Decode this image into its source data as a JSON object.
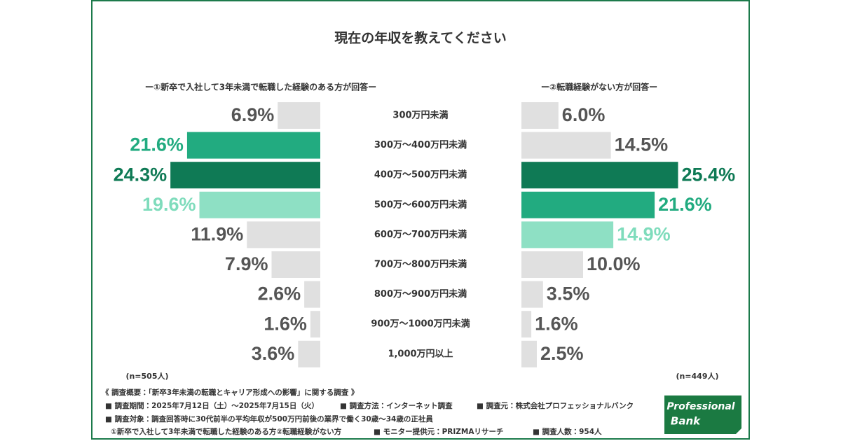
{
  "chart_data": {
    "type": "butterfly-bar",
    "title": "現在の年収を教えてください",
    "categories": [
      "300万円未満",
      "300万～400万円未満",
      "400万～500万円未満",
      "500万～600万円未満",
      "600万～700万円未満",
      "700万～800万円未満",
      "800万～900万円未満",
      "900万～1000万円未満",
      "1,000万円以上"
    ],
    "xlim": [
      0,
      25
    ],
    "series": [
      {
        "name": "ー①新卒で入社して3年未満で転職した経験のある方が回答ー",
        "side": "left",
        "note": "(n=505人)",
        "values": [
          6.9,
          21.6,
          24.3,
          19.6,
          11.9,
          7.9,
          2.6,
          1.6,
          3.6
        ],
        "value_labels": [
          "6.9%",
          "21.6%",
          "24.3%",
          "19.6%",
          "11.9%",
          "7.9%",
          "2.6%",
          "1.6%",
          "3.6%"
        ],
        "colors": [
          "#e0e0e0",
          "#22ab80",
          "#0f7a55",
          "#8ee0c4",
          "#e0e0e0",
          "#e0e0e0",
          "#e0e0e0",
          "#e0e0e0",
          "#e0e0e0"
        ],
        "label_colors": [
          "#555555",
          "#22ab80",
          "#0f7a55",
          "#7fdcbc",
          "#555555",
          "#555555",
          "#555555",
          "#555555",
          "#555555"
        ]
      },
      {
        "name": "ー②転職経験がない方が回答ー",
        "side": "right",
        "note": "(n=449人)",
        "values": [
          6.0,
          14.5,
          25.4,
          21.6,
          14.9,
          10.0,
          3.5,
          1.6,
          2.5
        ],
        "value_labels": [
          "6.0%",
          "14.5%",
          "25.4%",
          "21.6%",
          "14.9%",
          "10.0%",
          "3.5%",
          "1.6%",
          "2.5%"
        ],
        "colors": [
          "#e0e0e0",
          "#e0e0e0",
          "#0f7a55",
          "#22ab80",
          "#8ee0c4",
          "#e0e0e0",
          "#e0e0e0",
          "#e0e0e0",
          "#e0e0e0"
        ],
        "label_colors": [
          "#555555",
          "#555555",
          "#0f7a55",
          "#22ab80",
          "#7fdcbc",
          "#555555",
          "#555555",
          "#555555",
          "#555555"
        ]
      }
    ]
  },
  "footer": {
    "heading": "《 調査概要：「新卒3年未満の転職とキャリア形成への影響」に関する調査 》",
    "lines": [
      [
        "■ 調査期間：2025年7月12日（土）～2025年7月15日（火）",
        "■ 調査方法：インターネット調査",
        "■ 調査元：株式会社プロフェッショナルバンク"
      ],
      [
        "■ 調査対象：調査回答時に30代前半の平均年収が500万円前後の業界で働く30歳～34歳の正社員"
      ],
      [
        "①新卒で入社して3年未満で転職した経験のある方②転職経験がない方",
        "■ モニター提供元：PRIZMAリサーチ",
        "■ 調査人数：954人"
      ]
    ],
    "logo": [
      "Professional",
      "Bank"
    ]
  }
}
